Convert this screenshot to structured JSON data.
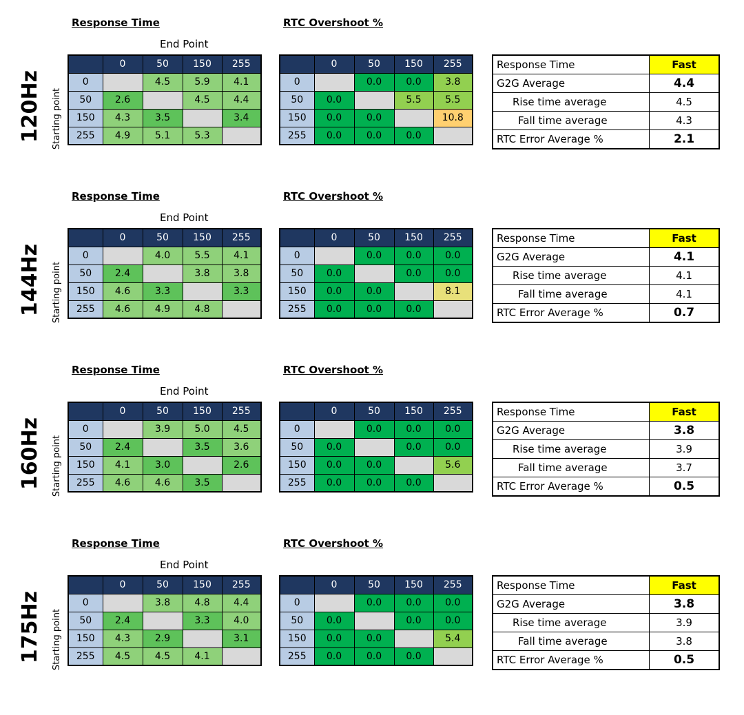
{
  "labels": {
    "response_time_title": "Response Time",
    "overshoot_title": "RTC Overshoot %",
    "end_point": "End Point",
    "starting_point": "Starting point",
    "column_headers": [
      "",
      "0",
      "50",
      "150",
      "255"
    ],
    "row_headers": [
      "0",
      "50",
      "150",
      "255"
    ],
    "summary_labels": [
      "Response Time",
      "G2G Average",
      "Rise time average",
      "Fall time average",
      "RTC Error Average %"
    ]
  },
  "colors": {
    "header_navy": "#1f3760",
    "row_header_blue": "#b8cce4",
    "diagonal_gray": "#d9d9d9",
    "response_green_light": "#8fd17a",
    "response_green_mid": "#5ec25a",
    "overshoot_green": "#00b050",
    "overshoot_lime": "#92d050",
    "overshoot_yellow": "#e8e07a",
    "overshoot_orange": "#ffd070",
    "fast_badge_yellow": "#ffff00"
  },
  "blocks": [
    {
      "refresh": "120Hz",
      "response": [
        [
          "",
          "4.5",
          "5.9",
          "4.1"
        ],
        [
          "2.6",
          "",
          "4.5",
          "4.4"
        ],
        [
          "4.3",
          "3.5",
          "",
          "3.4"
        ],
        [
          "4.9",
          "5.1",
          "5.3",
          ""
        ]
      ],
      "overshoot": [
        [
          "",
          "0.0",
          "0.0",
          "3.8"
        ],
        [
          "0.0",
          "",
          "5.5",
          "5.5"
        ],
        [
          "0.0",
          "0.0",
          "",
          "10.8"
        ],
        [
          "0.0",
          "0.0",
          "0.0",
          ""
        ]
      ],
      "summary": {
        "speed": "Fast",
        "g2g": "4.4",
        "rise": "4.5",
        "fall": "4.3",
        "rtc_error": "2.1"
      }
    },
    {
      "refresh": "144Hz",
      "response": [
        [
          "",
          "4.0",
          "5.5",
          "4.1"
        ],
        [
          "2.4",
          "",
          "3.8",
          "3.8"
        ],
        [
          "4.6",
          "3.3",
          "",
          "3.3"
        ],
        [
          "4.6",
          "4.9",
          "4.8",
          ""
        ]
      ],
      "overshoot": [
        [
          "",
          "0.0",
          "0.0",
          "0.0"
        ],
        [
          "0.0",
          "",
          "0.0",
          "0.0"
        ],
        [
          "0.0",
          "0.0",
          "",
          "8.1"
        ],
        [
          "0.0",
          "0.0",
          "0.0",
          ""
        ]
      ],
      "summary": {
        "speed": "Fast",
        "g2g": "4.1",
        "rise": "4.1",
        "fall": "4.1",
        "rtc_error": "0.7"
      }
    },
    {
      "refresh": "160Hz",
      "response": [
        [
          "",
          "3.9",
          "5.0",
          "4.5"
        ],
        [
          "2.4",
          "",
          "3.5",
          "3.6"
        ],
        [
          "4.1",
          "3.0",
          "",
          "2.6"
        ],
        [
          "4.6",
          "4.6",
          "3.5",
          ""
        ]
      ],
      "overshoot": [
        [
          "",
          "0.0",
          "0.0",
          "0.0"
        ],
        [
          "0.0",
          "",
          "0.0",
          "0.0"
        ],
        [
          "0.0",
          "0.0",
          "",
          "5.6"
        ],
        [
          "0.0",
          "0.0",
          "0.0",
          ""
        ]
      ],
      "summary": {
        "speed": "Fast",
        "g2g": "3.8",
        "rise": "3.9",
        "fall": "3.7",
        "rtc_error": "0.5"
      }
    },
    {
      "refresh": "175Hz",
      "response": [
        [
          "",
          "3.8",
          "4.8",
          "4.4"
        ],
        [
          "2.4",
          "",
          "3.3",
          "4.0"
        ],
        [
          "4.3",
          "2.9",
          "",
          "3.1"
        ],
        [
          "4.5",
          "4.5",
          "4.1",
          ""
        ]
      ],
      "overshoot": [
        [
          "",
          "0.0",
          "0.0",
          "0.0"
        ],
        [
          "0.0",
          "",
          "0.0",
          "0.0"
        ],
        [
          "0.0",
          "0.0",
          "",
          "5.4"
        ],
        [
          "0.0",
          "0.0",
          "0.0",
          ""
        ]
      ],
      "summary": {
        "speed": "Fast",
        "g2g": "3.8",
        "rise": "3.9",
        "fall": "3.8",
        "rtc_error": "0.5"
      }
    }
  ]
}
